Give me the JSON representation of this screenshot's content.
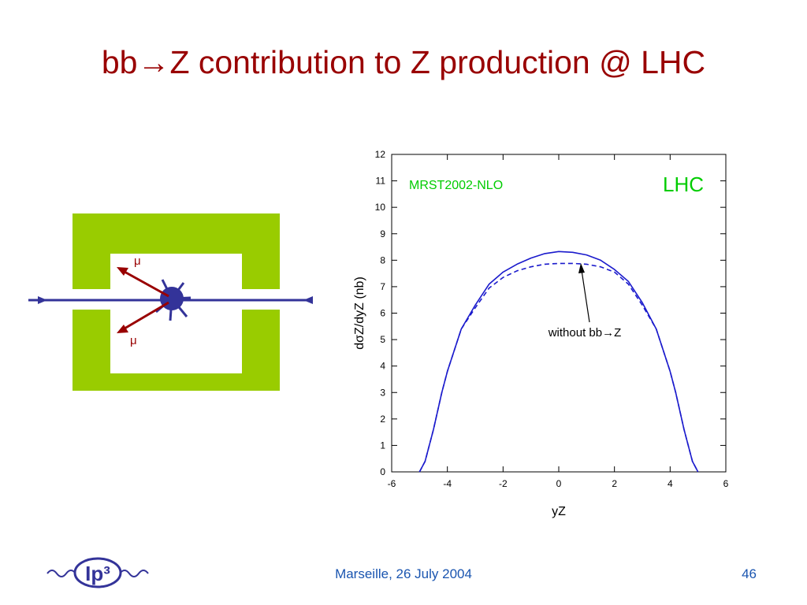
{
  "slide": {
    "title": "bb→Z contribution to Z production @ LHC",
    "footer": "Marseille, 26 July 2004",
    "page": "46",
    "logo": "Ip³"
  },
  "diagram": {
    "labels": [
      "μ",
      "μ"
    ]
  },
  "chart_data": {
    "type": "line",
    "x": [
      -5,
      -4.8,
      -4.5,
      -4.2,
      -4,
      -3.5,
      -3,
      -2.5,
      -2,
      -1.5,
      -1,
      -0.5,
      0,
      0.5,
      1,
      1.5,
      2,
      2.5,
      3,
      3.5,
      4,
      4.2,
      4.5,
      4.8,
      5
    ],
    "series": [
      {
        "color": "#1a1acc",
        "dash": false,
        "values": [
          0,
          0.4,
          1.6,
          3.0,
          3.8,
          5.4,
          6.3,
          7.1,
          7.55,
          7.85,
          8.08,
          8.25,
          8.33,
          8.3,
          8.2,
          8.0,
          7.65,
          7.2,
          6.4,
          5.4,
          3.8,
          3.0,
          1.6,
          0.4,
          0
        ]
      },
      {
        "name": "without bb→Z",
        "color": "#1a1acc",
        "dash": true,
        "values": [
          0,
          0.4,
          1.6,
          3.0,
          3.8,
          5.4,
          6.2,
          6.95,
          7.35,
          7.6,
          7.75,
          7.85,
          7.88,
          7.88,
          7.85,
          7.75,
          7.55,
          7.1,
          6.3,
          5.4,
          3.8,
          3.0,
          1.6,
          0.4,
          0
        ]
      }
    ],
    "xlabel": "yZ",
    "ylabel": "dσZ/dyZ   (nb)",
    "annotations": [
      {
        "text": "MRST2002-NLO",
        "color": "#00cc00"
      },
      {
        "text": "LHC",
        "color": "#00cc00"
      }
    ],
    "xlim": [
      -6,
      6
    ],
    "xticks": [
      -6,
      -4,
      -2,
      0,
      2,
      4,
      6
    ],
    "ylim": [
      0,
      12
    ],
    "yticks": [
      0,
      1,
      2,
      3,
      4,
      5,
      6,
      7,
      8,
      9,
      10,
      11,
      12
    ]
  }
}
